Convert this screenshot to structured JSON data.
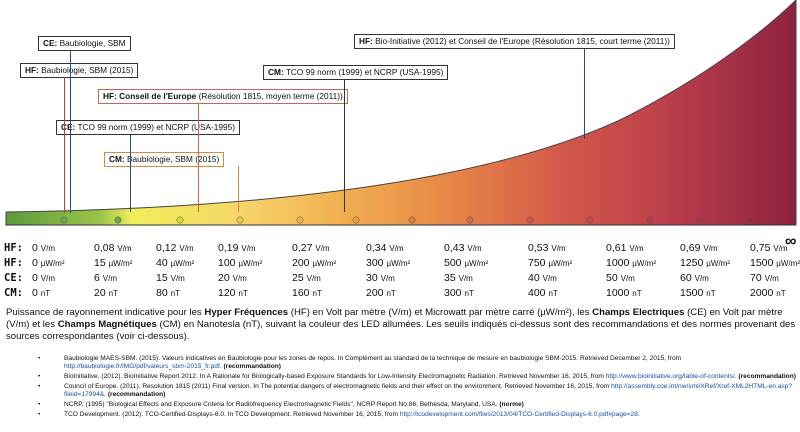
{
  "boxes": [
    {
      "id": "ce-baubiologie",
      "prefix": "CE:",
      "text": "Baubiologie, SBM",
      "color": "#1d4e8f"
    },
    {
      "id": "hf-baubiologie",
      "prefix": "HF:",
      "text": "Baubiologie, SBM (2015)",
      "color": "#c23b2a"
    },
    {
      "id": "hf-conseil-moyen",
      "prefix": "HF: Conseil de l'Europe",
      "text": "(Résolution 1815, moyen terme (2011))",
      "color": "#c23b2a"
    },
    {
      "id": "ce-tco",
      "prefix": "CE:",
      "text": "TCO 99 norm (1999) et NCRP (USA-1995)",
      "color": "#1d4e8f"
    },
    {
      "id": "cm-baubiologie",
      "prefix": "CM:",
      "text": "Baubiologie, SBM (2015)",
      "color": "#e08a1e"
    },
    {
      "id": "cm-tco",
      "prefix": "CM:",
      "text": "TCO 99 norm (1999) et NCRP (USA-1995)",
      "color": "#333333"
    },
    {
      "id": "hf-bioinitiative",
      "prefix": "HF:",
      "text": "Bio-Initiative (2012) et Conseil de l'Europe (Résolution 1815, court terme (2011))",
      "color": "#1d4e8f"
    }
  ],
  "leds": [
    {
      "color": "#6aa84f"
    },
    {
      "color": "#6aa84f"
    },
    {
      "color": "#d9d92a"
    },
    {
      "color": "#e8c84a"
    },
    {
      "color": "#f0b24a"
    },
    {
      "color": "#f09a3a"
    },
    {
      "color": "#e07b3a"
    },
    {
      "color": "#d86a4a"
    },
    {
      "color": "#cc5a4a"
    },
    {
      "color": "#c04a48"
    },
    {
      "color": "#b83d48"
    },
    {
      "color": "#a83246"
    },
    {
      "color": "#9a2a44"
    }
  ],
  "table": {
    "rows": [
      {
        "label": "HF:",
        "cells": [
          [
            "0",
            "V/m"
          ],
          [
            "0,08",
            "V/m"
          ],
          [
            "0,12",
            "V/m"
          ],
          [
            "0,19",
            "V/m"
          ],
          [
            "0,27",
            "V/m"
          ],
          [
            "0,34",
            "V/m"
          ],
          [
            "0,43",
            "V/m"
          ],
          [
            "0,53",
            "V/m"
          ],
          [
            "0,61",
            "V/m"
          ],
          [
            "0,69",
            "V/m"
          ],
          [
            "0,75",
            "V/m"
          ]
        ]
      },
      {
        "label": "HF:",
        "cells": [
          [
            "0",
            "µW/m²"
          ],
          [
            "15",
            "µW/m²"
          ],
          [
            "40",
            "µW/m²"
          ],
          [
            "100",
            "µW/m²"
          ],
          [
            "200",
            "µW/m²"
          ],
          [
            "300",
            "µW/m²"
          ],
          [
            "500",
            "µW/m²"
          ],
          [
            "750",
            "µW/m²"
          ],
          [
            "1000",
            "µW/m²"
          ],
          [
            "1250",
            "µW/m²"
          ],
          [
            "1500",
            "µW/m²"
          ]
        ]
      },
      {
        "label": "CE:",
        "cells": [
          [
            "0",
            "V/m"
          ],
          [
            "6",
            "V/m"
          ],
          [
            "15",
            "V/m"
          ],
          [
            "20",
            "V/m"
          ],
          [
            "25",
            "V/m"
          ],
          [
            "30",
            "V/m"
          ],
          [
            "35",
            "V/m"
          ],
          [
            "40",
            "V/m"
          ],
          [
            "50",
            "V/m"
          ],
          [
            "60",
            "V/m"
          ],
          [
            "70",
            "V/m"
          ]
        ]
      },
      {
        "label": "CM:",
        "cells": [
          [
            "0",
            "nT"
          ],
          [
            "20",
            "nT"
          ],
          [
            "80",
            "nT"
          ],
          [
            "120",
            "nT"
          ],
          [
            "160",
            "nT"
          ],
          [
            "200",
            "nT"
          ],
          [
            "300",
            "nT"
          ],
          [
            "400",
            "nT"
          ],
          [
            "1000",
            "nT"
          ],
          [
            "1500",
            "nT"
          ],
          [
            "2000",
            "nT"
          ]
        ]
      }
    ],
    "infinity": "∞"
  },
  "paragraph": {
    "p1": "Puissance de rayonnement indicative pour les ",
    "b1": "Hyper Fréquences",
    "p2": " (HF) en Volt par mètre (V/m) et Microwatt par mètre carré (µW/m²), les ",
    "b2": "Champs Electriques",
    "p3": " (CE) en Volt par mètre (V/m) et les ",
    "b3": "Champs Magnétiques",
    "p4": " (CM) en Nanotesla (nT), suivant la couleur des LED allumées. Les seuils indiqués ci-dessus sont des recommandations et des normes provenant des sources correspondantes (voir ci-dessous)."
  },
  "references": [
    {
      "text": "Baubiologie MAES-SBM. (2015). Valeurs indicatives en Baubiologie pour les zones de repos. In Complément au standard de la technique de mesure en baubiologie SBM-2015. Retrieved December 2, 2015, from ",
      "link": "http://baubiologie.fr/IMG/pdf/valeurs_sbm-2015_fr.pdf.",
      "tag": "(recommandation)"
    },
    {
      "text": "BioInitiative. (2012). BioInitiative Report 2012. In A Rationale for Biologically-based Exposure Standards for Low-Intensity Electromagnetic Radiation. Retrieved November 16, 2015, from ",
      "link": "http://www.bioinitiative.org/table-of-contents/.",
      "tag": "(recommandation)"
    },
    {
      "text": "Council of Europe. (2011). Resolution 1815 (2011) Final version. In The potential dangers of electromagnetic fields and their effect on the environment. Retrieved November 16, 2015, from ",
      "link": "http://assembly.coe.int/nw/xml/XRef/Xref-XML2HTML-en.asp?fileid=17994&.",
      "tag": "(recommandation)"
    },
    {
      "text": "NCRP, (1995) \"Biological Effects and Exposure Criteria for Radiofrequency Electromagnetic Fields\", NCRP Report No.86, Bethesda, Maryland, USA. ",
      "link": "",
      "tag": "(norme)"
    },
    {
      "text": "TCO Development. (2012). TCO-Certified-Displays-6.0. In TCO Development. Retrieved November 16, 2015, from ",
      "link": "http://tcodevelopment.com/files/2013/04/TCO-Certified-Displays-6.0.pdf#page=28.",
      "tag": ""
    }
  ]
}
